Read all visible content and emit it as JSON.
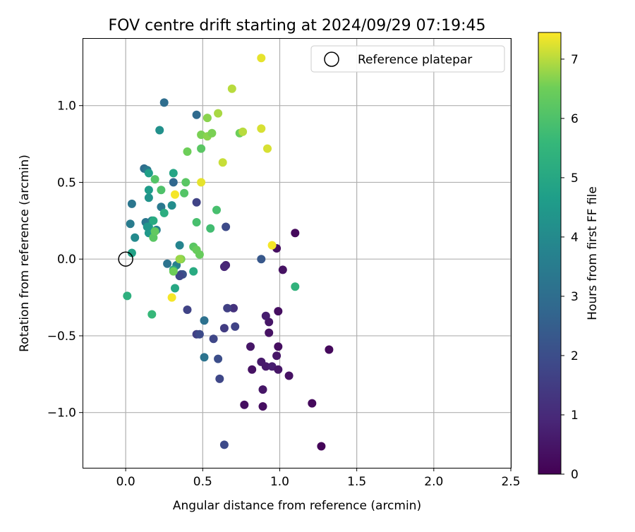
{
  "chart_data": {
    "type": "scatter",
    "title": "FOV centre drift starting at 2024/09/29 07:19:45",
    "xlabel": "Angular distance from reference (arcmin)",
    "ylabel": "Rotation from reference (arcmin)",
    "xlim": [
      -0.28,
      2.5
    ],
    "ylim": [
      -1.36,
      1.44
    ],
    "x_ticks": [
      0.0,
      0.5,
      1.0,
      1.5,
      2.0,
      2.5
    ],
    "x_tick_labels": [
      "0.0",
      "0.5",
      "1.0",
      "1.5",
      "2.0",
      "2.5"
    ],
    "y_ticks": [
      -1.0,
      -0.5,
      0.0,
      0.5,
      1.0
    ],
    "y_tick_labels": [
      "−1.0",
      "−0.5",
      "0.0",
      "0.5",
      "1.0"
    ],
    "grid": true,
    "legend": {
      "position": "top-right",
      "entries": [
        "Reference platepar"
      ]
    },
    "reference_point": {
      "x": 0.0,
      "y": 0.0
    },
    "colorbar": {
      "label": "Hours from first FF file",
      "colormap": "viridis",
      "min": 0,
      "max": 7.45,
      "ticks": [
        0,
        1,
        2,
        3,
        4,
        5,
        6,
        7
      ],
      "tick_labels": [
        "0",
        "1",
        "2",
        "3",
        "4",
        "5",
        "6",
        "7"
      ]
    },
    "points": [
      {
        "x": 1.27,
        "y": -1.22,
        "h": 0.1
      },
      {
        "x": 1.21,
        "y": -0.94,
        "h": 0.2
      },
      {
        "x": 1.32,
        "y": -0.59,
        "h": 0.2
      },
      {
        "x": 0.89,
        "y": -0.96,
        "h": 0.3
      },
      {
        "x": 0.77,
        "y": -0.95,
        "h": 0.3
      },
      {
        "x": 0.89,
        "y": -0.85,
        "h": 0.5
      },
      {
        "x": 0.82,
        "y": -0.72,
        "h": 0.4
      },
      {
        "x": 0.88,
        "y": -0.67,
        "h": 0.6
      },
      {
        "x": 0.91,
        "y": -0.7,
        "h": 0.6
      },
      {
        "x": 0.95,
        "y": -0.7,
        "h": 0.7
      },
      {
        "x": 0.99,
        "y": -0.72,
        "h": 0.5
      },
      {
        "x": 1.06,
        "y": -0.76,
        "h": 0.4
      },
      {
        "x": 0.98,
        "y": -0.63,
        "h": 0.5
      },
      {
        "x": 0.99,
        "y": -0.57,
        "h": 0.3
      },
      {
        "x": 0.81,
        "y": -0.57,
        "h": 0.5
      },
      {
        "x": 0.93,
        "y": -0.48,
        "h": 0.4
      },
      {
        "x": 0.93,
        "y": -0.41,
        "h": 0.5
      },
      {
        "x": 0.91,
        "y": -0.37,
        "h": 0.7
      },
      {
        "x": 0.99,
        "y": -0.34,
        "h": 0.3
      },
      {
        "x": 1.02,
        "y": -0.07,
        "h": 0.4
      },
      {
        "x": 0.98,
        "y": 0.07,
        "h": 0.3
      },
      {
        "x": 1.1,
        "y": 0.17,
        "h": 0.2
      },
      {
        "x": 0.65,
        "y": -0.04,
        "h": 0.8
      },
      {
        "x": 0.64,
        "y": -0.05,
        "h": 0.9
      },
      {
        "x": 0.7,
        "y": -0.32,
        "h": 1.2
      },
      {
        "x": 0.66,
        "y": -0.32,
        "h": 1.6
      },
      {
        "x": 0.71,
        "y": -0.44,
        "h": 1.7
      },
      {
        "x": 0.64,
        "y": -0.45,
        "h": 1.5
      },
      {
        "x": 0.57,
        "y": -0.52,
        "h": 1.8
      },
      {
        "x": 0.46,
        "y": -0.49,
        "h": 1.6
      },
      {
        "x": 0.48,
        "y": -0.49,
        "h": 1.9
      },
      {
        "x": 0.6,
        "y": -0.65,
        "h": 2.0
      },
      {
        "x": 0.61,
        "y": -0.78,
        "h": 1.8
      },
      {
        "x": 0.64,
        "y": -1.21,
        "h": 1.9
      },
      {
        "x": 0.4,
        "y": -0.33,
        "h": 1.7
      },
      {
        "x": 0.36,
        "y": -0.1,
        "h": 2.2
      },
      {
        "x": 0.37,
        "y": -0.1,
        "h": 2.1
      },
      {
        "x": 0.35,
        "y": -0.11,
        "h": 1.8
      },
      {
        "x": 0.88,
        "y": 0.0,
        "h": 2.3
      },
      {
        "x": 0.65,
        "y": 0.21,
        "h": 1.9
      },
      {
        "x": 0.46,
        "y": 0.37,
        "h": 1.7
      },
      {
        "x": 0.46,
        "y": 0.94,
        "h": 2.9
      },
      {
        "x": 0.51,
        "y": -0.4,
        "h": 3.1
      },
      {
        "x": 0.51,
        "y": -0.64,
        "h": 3.2
      },
      {
        "x": 0.25,
        "y": 1.02,
        "h": 3.0
      },
      {
        "x": 0.31,
        "y": 0.5,
        "h": 2.8
      },
      {
        "x": 0.27,
        "y": -0.03,
        "h": 3.2
      },
      {
        "x": 0.33,
        "y": -0.04,
        "h": 3.6
      },
      {
        "x": 0.12,
        "y": 0.59,
        "h": 3.0
      },
      {
        "x": 0.14,
        "y": 0.58,
        "h": 3.4
      },
      {
        "x": 0.04,
        "y": 0.36,
        "h": 3.3
      },
      {
        "x": 0.23,
        "y": 0.34,
        "h": 3.4
      },
      {
        "x": 0.03,
        "y": 0.23,
        "h": 3.5
      },
      {
        "x": 0.13,
        "y": 0.24,
        "h": 3.3
      },
      {
        "x": 0.17,
        "y": 0.25,
        "h": 3.6
      },
      {
        "x": 0.2,
        "y": 0.19,
        "h": 3.7
      },
      {
        "x": 0.35,
        "y": 0.09,
        "h": 3.8
      },
      {
        "x": 0.06,
        "y": 0.14,
        "h": 4.0
      },
      {
        "x": 0.22,
        "y": 0.84,
        "h": 4.2
      },
      {
        "x": 0.3,
        "y": 0.35,
        "h": 4.1
      },
      {
        "x": 0.15,
        "y": 0.4,
        "h": 4.3
      },
      {
        "x": 0.15,
        "y": 0.45,
        "h": 4.6
      },
      {
        "x": 0.31,
        "y": 0.56,
        "h": 4.9
      },
      {
        "x": 0.15,
        "y": 0.56,
        "h": 4.7
      },
      {
        "x": 0.15,
        "y": 0.17,
        "h": 4.5
      },
      {
        "x": 0.15,
        "y": 0.21,
        "h": 4.8
      },
      {
        "x": 0.14,
        "y": 0.21,
        "h": 4.4
      },
      {
        "x": 0.04,
        "y": 0.04,
        "h": 4.8
      },
      {
        "x": 0.25,
        "y": 0.3,
        "h": 5.2
      },
      {
        "x": 0.18,
        "y": 0.25,
        "h": 5.1
      },
      {
        "x": 0.31,
        "y": -0.07,
        "h": 5.0
      },
      {
        "x": 0.32,
        "y": -0.19,
        "h": 5.0
      },
      {
        "x": 0.44,
        "y": -0.08,
        "h": 5.1
      },
      {
        "x": 0.01,
        "y": -0.24,
        "h": 5.3
      },
      {
        "x": 0.17,
        "y": -0.36,
        "h": 5.6
      },
      {
        "x": 1.1,
        "y": -0.18,
        "h": 5.4
      },
      {
        "x": 0.55,
        "y": 0.2,
        "h": 5.8
      },
      {
        "x": 0.59,
        "y": 0.32,
        "h": 5.9
      },
      {
        "x": 0.46,
        "y": 0.24,
        "h": 5.9
      },
      {
        "x": 0.23,
        "y": 0.45,
        "h": 6.0
      },
      {
        "x": 0.38,
        "y": 0.43,
        "h": 6.1
      },
      {
        "x": 0.39,
        "y": 0.5,
        "h": 6.2
      },
      {
        "x": 0.19,
        "y": 0.52,
        "h": 6.1
      },
      {
        "x": 0.18,
        "y": 0.14,
        "h": 6.2
      },
      {
        "x": 0.19,
        "y": 0.18,
        "h": 6.3
      },
      {
        "x": 0.44,
        "y": 0.08,
        "h": 6.2
      },
      {
        "x": 0.46,
        "y": 0.06,
        "h": 6.4
      },
      {
        "x": 0.48,
        "y": 0.03,
        "h": 6.4
      },
      {
        "x": 0.36,
        "y": 0.0,
        "h": 6.6
      },
      {
        "x": 0.35,
        "y": 0.0,
        "h": 6.8
      },
      {
        "x": 0.31,
        "y": -0.08,
        "h": 6.5
      },
      {
        "x": 0.4,
        "y": 0.7,
        "h": 6.5
      },
      {
        "x": 0.49,
        "y": 0.72,
        "h": 6.2
      },
      {
        "x": 0.49,
        "y": 0.81,
        "h": 6.6
      },
      {
        "x": 0.53,
        "y": 0.8,
        "h": 6.7
      },
      {
        "x": 0.56,
        "y": 0.82,
        "h": 6.6
      },
      {
        "x": 0.53,
        "y": 0.92,
        "h": 6.7
      },
      {
        "x": 0.6,
        "y": 0.95,
        "h": 6.9
      },
      {
        "x": 0.74,
        "y": 0.82,
        "h": 6.5
      },
      {
        "x": 0.76,
        "y": 0.83,
        "h": 7.0
      },
      {
        "x": 0.69,
        "y": 1.11,
        "h": 7.0
      },
      {
        "x": 0.63,
        "y": 0.63,
        "h": 7.1
      },
      {
        "x": 0.49,
        "y": 0.5,
        "h": 7.3
      },
      {
        "x": 0.88,
        "y": 0.85,
        "h": 7.2
      },
      {
        "x": 0.92,
        "y": 0.72,
        "h": 7.2
      },
      {
        "x": 0.88,
        "y": 1.31,
        "h": 7.3
      },
      {
        "x": 0.32,
        "y": 0.42,
        "h": 7.4
      },
      {
        "x": 0.95,
        "y": 0.09,
        "h": 7.4
      },
      {
        "x": 0.3,
        "y": -0.25,
        "h": 7.4
      }
    ]
  }
}
